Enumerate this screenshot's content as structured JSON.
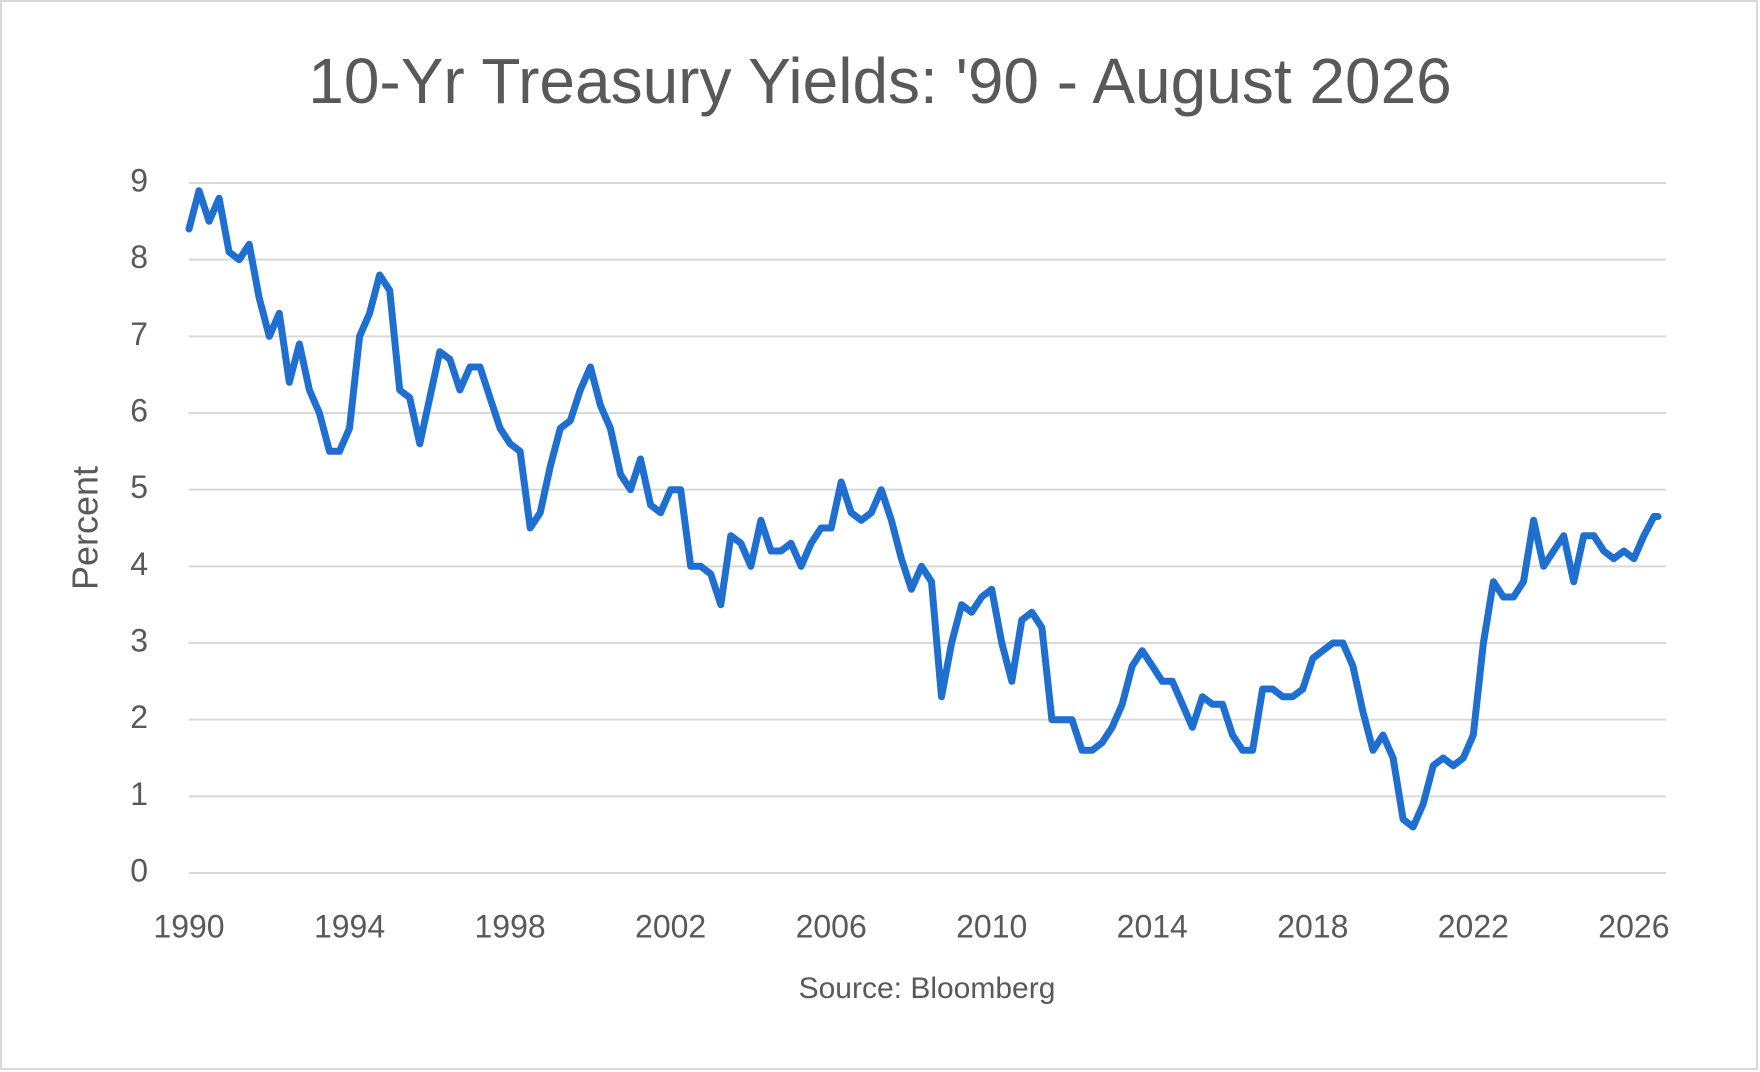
{
  "chart_data": {
    "type": "line",
    "title": "10-Yr Treasury Yields: '90 - August 2026",
    "ylabel": "Percent",
    "source": "Source: Bloomberg",
    "x": [
      1990,
      1990.25,
      1990.5,
      1990.75,
      1991,
      1991.25,
      1991.5,
      1991.75,
      1992,
      1992.25,
      1992.5,
      1992.75,
      1993,
      1993.25,
      1993.5,
      1993.75,
      1994,
      1994.25,
      1994.5,
      1994.75,
      1995,
      1995.25,
      1995.5,
      1995.75,
      1996,
      1996.25,
      1996.5,
      1996.75,
      1997,
      1997.25,
      1997.5,
      1997.75,
      1998,
      1998.25,
      1998.5,
      1998.75,
      1999,
      1999.25,
      1999.5,
      1999.75,
      2000,
      2000.25,
      2000.5,
      2000.75,
      2001,
      2001.25,
      2001.5,
      2001.75,
      2002,
      2002.25,
      2002.5,
      2002.75,
      2003,
      2003.25,
      2003.5,
      2003.75,
      2004,
      2004.25,
      2004.5,
      2004.75,
      2005,
      2005.25,
      2005.5,
      2005.75,
      2006,
      2006.25,
      2006.5,
      2006.75,
      2007,
      2007.25,
      2007.5,
      2007.75,
      2008,
      2008.25,
      2008.5,
      2008.75,
      2009,
      2009.25,
      2009.5,
      2009.75,
      2010,
      2010.25,
      2010.5,
      2010.75,
      2011,
      2011.25,
      2011.5,
      2011.75,
      2012,
      2012.25,
      2012.5,
      2012.75,
      2013,
      2013.25,
      2013.5,
      2013.75,
      2014,
      2014.25,
      2014.5,
      2014.75,
      2015,
      2015.25,
      2015.5,
      2015.75,
      2016,
      2016.25,
      2016.5,
      2016.75,
      2017,
      2017.25,
      2017.5,
      2017.75,
      2018,
      2018.25,
      2018.5,
      2018.75,
      2019,
      2019.25,
      2019.5,
      2019.75,
      2020,
      2020.25,
      2020.5,
      2020.75,
      2021,
      2021.25,
      2021.5,
      2021.75,
      2022,
      2022.25,
      2022.5,
      2022.75,
      2023,
      2023.25,
      2023.5,
      2023.75,
      2024,
      2024.25,
      2024.5,
      2024.75,
      2025,
      2025.25,
      2025.5,
      2025.75,
      2026,
      2026.25,
      2026.5,
      2026.6
    ],
    "series": [
      {
        "name": "10-Yr Treasury Yield",
        "color": "#1f6fd0",
        "values": [
          8.4,
          8.9,
          8.5,
          8.8,
          8.1,
          8.0,
          8.2,
          7.5,
          7.0,
          7.3,
          6.4,
          6.9,
          6.3,
          6.0,
          5.5,
          5.5,
          5.8,
          7.0,
          7.3,
          7.8,
          7.6,
          6.3,
          6.2,
          5.6,
          6.2,
          6.8,
          6.7,
          6.3,
          6.6,
          6.6,
          6.2,
          5.8,
          5.6,
          5.5,
          4.5,
          4.7,
          5.3,
          5.8,
          5.9,
          6.3,
          6.6,
          6.1,
          5.8,
          5.2,
          5.0,
          5.4,
          4.8,
          4.7,
          5.0,
          5.0,
          4.0,
          4.0,
          3.9,
          3.5,
          4.4,
          4.3,
          4.0,
          4.6,
          4.2,
          4.2,
          4.3,
          4.0,
          4.3,
          4.5,
          4.5,
          5.1,
          4.7,
          4.6,
          4.7,
          5.0,
          4.6,
          4.1,
          3.7,
          4.0,
          3.8,
          2.3,
          3.0,
          3.5,
          3.4,
          3.6,
          3.7,
          3.0,
          2.5,
          3.3,
          3.4,
          3.2,
          2.0,
          2.0,
          2.0,
          1.6,
          1.6,
          1.7,
          1.9,
          2.2,
          2.7,
          2.9,
          2.7,
          2.5,
          2.5,
          2.2,
          1.9,
          2.3,
          2.2,
          2.2,
          1.8,
          1.6,
          1.6,
          2.4,
          2.4,
          2.3,
          2.3,
          2.4,
          2.8,
          2.9,
          3.0,
          3.0,
          2.7,
          2.1,
          1.6,
          1.8,
          1.5,
          0.7,
          0.6,
          0.9,
          1.4,
          1.5,
          1.4,
          1.5,
          1.8,
          3.0,
          3.8,
          3.6,
          3.6,
          3.8,
          4.6,
          4.0,
          4.2,
          4.4,
          3.8,
          4.4,
          4.4,
          4.2,
          4.1,
          4.2,
          4.1,
          4.4,
          4.65,
          4.65
        ]
      }
    ],
    "xlim": [
      1990,
      2026.8
    ],
    "xticks": [
      1990,
      1994,
      1998,
      2002,
      2006,
      2010,
      2014,
      2018,
      2022,
      2026
    ],
    "ylim": [
      0,
      9
    ],
    "yticks": [
      0,
      1,
      2,
      3,
      4,
      5,
      6,
      7,
      8,
      9
    ],
    "grid": true
  }
}
